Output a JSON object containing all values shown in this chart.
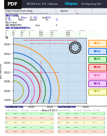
{
  "title": "RCC54 Circular Column Charting",
  "bg_color": "#ffffff",
  "chart_bg": "#cce0f0",
  "grid_color": "#99bbdd",
  "curves": [
    {
      "label": "RCC1",
      "color": "#ff8800",
      "scale": 1.0
    },
    {
      "label": "RCC2",
      "color": "#0055cc",
      "scale": 0.82
    },
    {
      "label": "RCC3",
      "color": "#007700",
      "scale": 0.7
    },
    {
      "label": "RCC4",
      "color": "#cc0000",
      "scale": 0.58
    },
    {
      "label": "RCC5",
      "color": "#ee44aa",
      "scale": 0.46
    },
    {
      "label": "RCC6",
      "color": "#8800aa",
      "scale": 0.34
    },
    {
      "label": "RCC7",
      "color": "#aaaa00",
      "scale": 0.22
    }
  ],
  "legend_bg_colors": [
    "#ffeecc",
    "#cce0ff",
    "#ccffcc",
    "#ffcccc",
    "#ffccee",
    "#eeccff",
    "#ffffcc"
  ],
  "legend_border_colors": [
    "#ff8800",
    "#0055cc",
    "#007700",
    "#cc0000",
    "#ee44aa",
    "#8800aa",
    "#aaaa00"
  ],
  "header_top_bg": "#2a2a3a",
  "header_pdf_bg": "#000000",
  "header_sub_bg": "#e8eaf0",
  "footer_bg": "#f0f0f0",
  "n_bars": 12,
  "xlabel": "Moment M (kN.m)",
  "ylabel": "Axial Load N (kN)",
  "chart_title": "Axial Load Moment Interaction Curve & Bar Arrangement",
  "chart_subtitle": "tolerance : greater than -1% all cases accepted (green)"
}
